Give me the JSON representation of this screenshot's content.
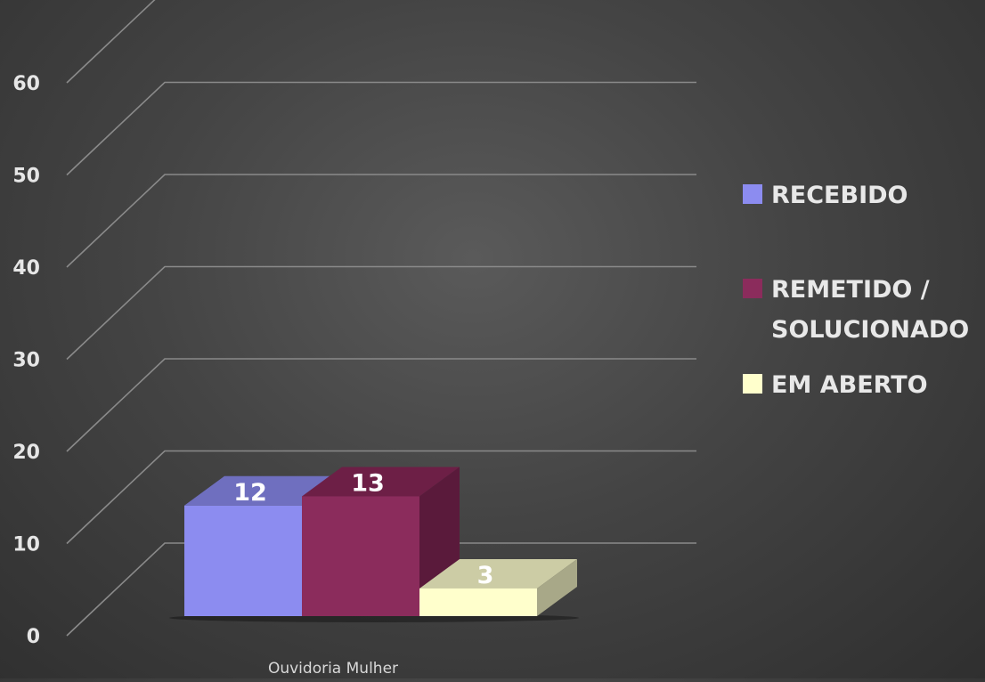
{
  "chart_data": {
    "type": "bar",
    "view": "3d-clustered-column",
    "categories": [
      "Ouvidoria Mulher"
    ],
    "series": [
      {
        "name": "RECEBIDO",
        "values": [
          12
        ],
        "color": "#8c8cf0",
        "top_color": "#6f6fbf"
      },
      {
        "name": "REMETIDO / SOLUCIONADO",
        "values": [
          13
        ],
        "color": "#8b2c5c",
        "top_color": "#6d1f46",
        "side_color": "#5a1a3b"
      },
      {
        "name": "EM ABERTO",
        "values": [
          3
        ],
        "color": "#ffffcc",
        "top_color": "#cccca5",
        "side_color": "#a8a888"
      }
    ],
    "data_labels": [
      "12",
      "13",
      "3"
    ],
    "ylim": [
      0,
      60
    ],
    "y_ticks": [
      "0",
      "10",
      "20",
      "30",
      "40",
      "50",
      "60"
    ],
    "grid": true,
    "legend_position": "right",
    "legend": {
      "items": [
        {
          "lines": [
            "RECEBIDO"
          ],
          "color": "#8c8cf0"
        },
        {
          "lines": [
            "REMETIDO /",
            "SOLUCIONADO"
          ],
          "color": "#8b2c5c"
        },
        {
          "lines": [
            "EM ABERTO"
          ],
          "color": "#ffffcc"
        }
      ]
    },
    "gridline_color": "#8a8a8a",
    "title": "",
    "xlabel": "",
    "ylabel": ""
  }
}
